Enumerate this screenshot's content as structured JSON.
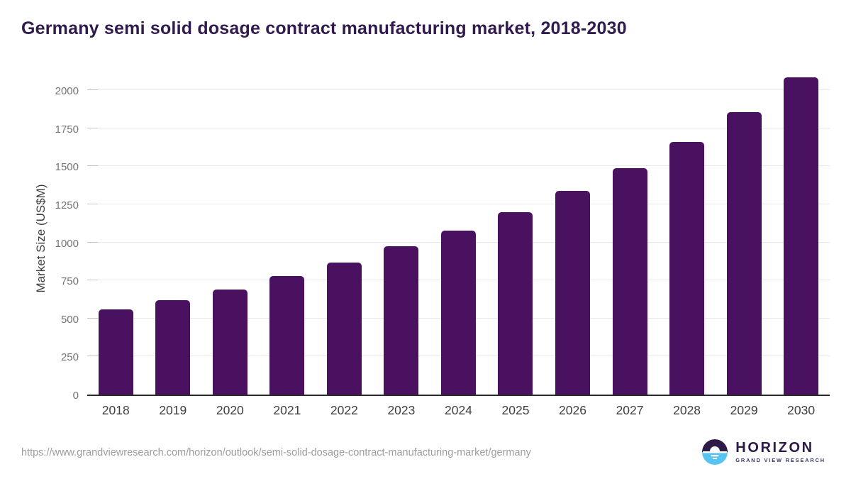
{
  "title": "Germany semi solid dosage contract manufacturing market, 2018-2030",
  "chart_data": {
    "type": "bar",
    "categories": [
      "2018",
      "2019",
      "2020",
      "2021",
      "2022",
      "2023",
      "2024",
      "2025",
      "2026",
      "2027",
      "2028",
      "2029",
      "2030"
    ],
    "values": [
      560,
      622,
      692,
      780,
      870,
      973,
      1080,
      1200,
      1340,
      1487,
      1660,
      1859,
      2085
    ],
    "title": "Germany semi solid dosage contract manufacturing market, 2018-2030",
    "xlabel": "",
    "ylabel": "Market Size (US$M)",
    "ylim": [
      0,
      2090
    ],
    "yticks": [
      0,
      250,
      500,
      750,
      1000,
      1250,
      1500,
      1750,
      2000
    ],
    "grid": true,
    "legend": "none",
    "bar_color": "#4b1161"
  },
  "colors": {
    "title": "#301a4e",
    "bar": "#4b1161",
    "gridline": "#e9e9e9",
    "axis_line": "#2b2b2b",
    "y_tick_text": "#737373",
    "x_tick_text": "#3f3f3f",
    "logo_dark": "#2e1a47",
    "logo_blue": "#56c3f0"
  },
  "footer": {
    "source_url": "https://www.grandviewresearch.com/horizon/outlook/semi-solid-dosage-contract-manufacturing-market/germany",
    "logo_name": "HORIZON",
    "logo_subtitle": "GRAND VIEW RESEARCH"
  }
}
